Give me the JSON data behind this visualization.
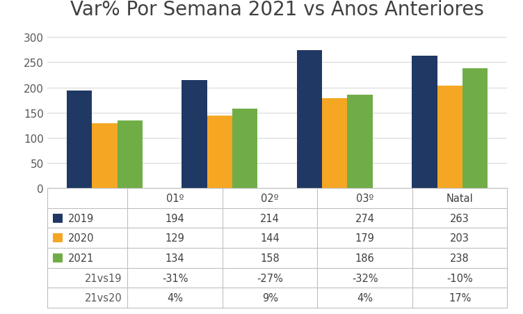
{
  "title": "Var% Por Semana 2021 vs Anos Anteriores",
  "categories": [
    "01º",
    "02º",
    "03º",
    "Natal"
  ],
  "series": {
    "2019": [
      194,
      214,
      274,
      263
    ],
    "2020": [
      129,
      144,
      179,
      203
    ],
    "2021": [
      134,
      158,
      186,
      238
    ]
  },
  "colors": {
    "2019": "#1F3864",
    "2020": "#F5A623",
    "2021": "#70AD47"
  },
  "table_rows": [
    {
      "label": "2019",
      "color": "#1F3864",
      "values": [
        "194",
        "214",
        "274",
        "263"
      ]
    },
    {
      "label": "2020",
      "color": "#F5A623",
      "values": [
        "129",
        "144",
        "179",
        "203"
      ]
    },
    {
      "label": "2021",
      "color": "#70AD47",
      "values": [
        "134",
        "158",
        "186",
        "238"
      ]
    },
    {
      "label": "21vs19",
      "color": null,
      "values": [
        "-31%",
        "-27%",
        "-32%",
        "-10%"
      ]
    },
    {
      "label": "21vs20",
      "color": null,
      "values": [
        "4%",
        "9%",
        "4%",
        "17%"
      ]
    }
  ],
  "ylim": [
    0,
    325
  ],
  "yticks": [
    0,
    50,
    100,
    150,
    200,
    250,
    300
  ],
  "bar_width": 0.22,
  "title_fontsize": 20,
  "tick_fontsize": 11,
  "table_fontsize": 10.5,
  "background_color": "#FFFFFF",
  "grid_color": "#D9D9D9",
  "border_color": "#BFBFBF"
}
